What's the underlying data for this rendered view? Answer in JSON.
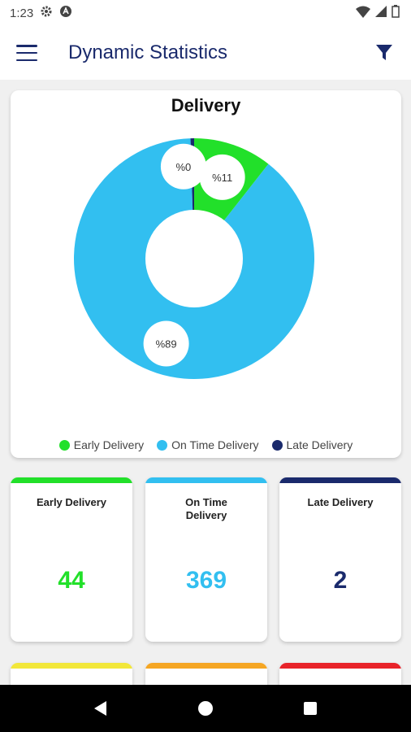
{
  "status_bar": {
    "time": "1:23"
  },
  "app_bar": {
    "title": "Dynamic Statistics"
  },
  "chart_card": {
    "title": "Delivery",
    "legend": [
      {
        "label": "Early Delivery",
        "color": "#22e02a"
      },
      {
        "label": "On Time Delivery",
        "color": "#32bff0"
      },
      {
        "label": "Late Delivery",
        "color": "#1a2a6c"
      }
    ]
  },
  "chart_data": {
    "type": "pie",
    "title": "Delivery",
    "categories": [
      "Early Delivery",
      "On Time Delivery",
      "Late Delivery"
    ],
    "values": [
      44,
      369,
      2
    ],
    "data_labels": [
      "%11",
      "%89",
      "%0"
    ],
    "colors": [
      "#22e02a",
      "#32bff0",
      "#1a2a6c"
    ],
    "donut": true,
    "legend_position": "bottom"
  },
  "stats": [
    {
      "label": "Early Delivery",
      "value": "44",
      "color": "#22e02a"
    },
    {
      "label": "On Time Delivery",
      "value": "369",
      "color": "#32bff0"
    },
    {
      "label": "Late Delivery",
      "value": "2",
      "color": "#1a2a6c"
    }
  ],
  "stub_colors": [
    "#f2e73a",
    "#f5a623",
    "#e8232a"
  ]
}
